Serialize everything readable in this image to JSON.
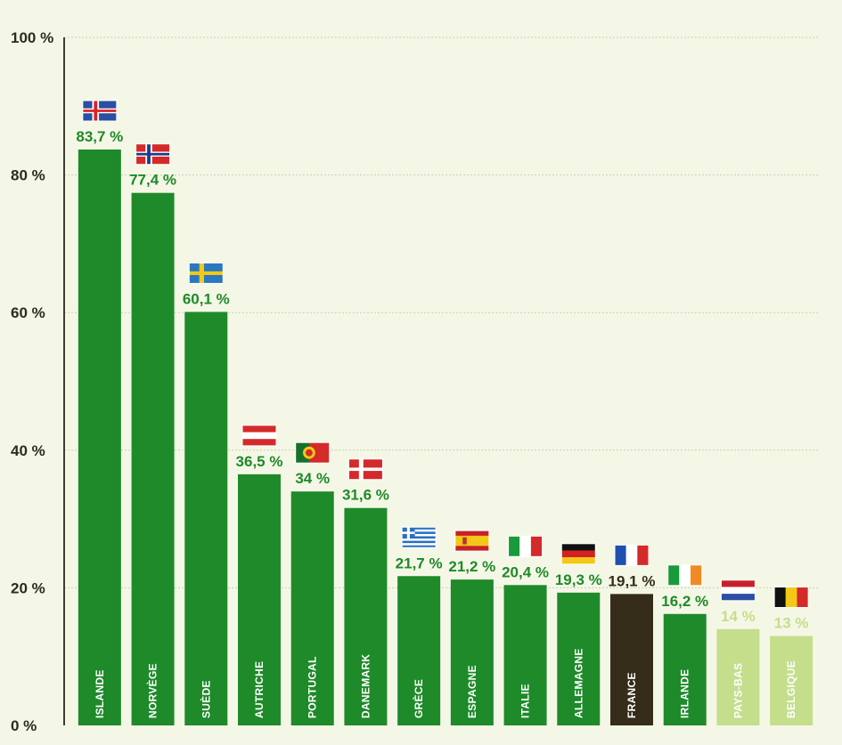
{
  "chart_data": {
    "type": "bar",
    "title": "",
    "xlabel": "",
    "ylabel": "",
    "ylim": [
      0,
      100
    ],
    "y_ticks": [
      "0 %",
      "20 %",
      "40 %",
      "60 %",
      "80 %",
      "100 %"
    ],
    "grid": true,
    "categories": [
      "ISLANDE",
      "NORVÈGE",
      "SUÈDE",
      "AUTRICHE",
      "PORTUGAL",
      "DANEMARK",
      "GRÈCE",
      "ESPAGNE",
      "ITALIE",
      "ALLEMAGNE",
      "FRANCE",
      "IRLANDE",
      "PAYS-BAS",
      "BELGIQUE"
    ],
    "values": [
      83.7,
      77.4,
      60.1,
      36.5,
      34,
      31.6,
      21.7,
      21.2,
      20.4,
      19.3,
      19.1,
      16.2,
      14,
      13
    ],
    "value_labels": [
      "83,7 %",
      "77,4 %",
      "60,1 %",
      "36,5 %",
      "34 %",
      "31,6 %",
      "21,7 %",
      "21,2 %",
      "20,4 %",
      "19,3 %",
      "19,1 %",
      "16,2 %",
      "14 %",
      "13 %"
    ],
    "bar_colors": [
      "#1e8a2a",
      "#1e8a2a",
      "#1e8a2a",
      "#1e8a2a",
      "#1e8a2a",
      "#1e8a2a",
      "#1e8a2a",
      "#1e8a2a",
      "#1e8a2a",
      "#1e8a2a",
      "#352c1a",
      "#1e8a2a",
      "#c4de8c",
      "#c4de8c"
    ],
    "label_colors": [
      "#1e8a2a",
      "#1e8a2a",
      "#1e8a2a",
      "#1e8a2a",
      "#1e8a2a",
      "#1e8a2a",
      "#1e8a2a",
      "#1e8a2a",
      "#1e8a2a",
      "#1e8a2a",
      "#352c1a",
      "#1e8a2a",
      "#c4de8c",
      "#c4de8c"
    ],
    "flags": [
      "iceland-flag",
      "norway-flag",
      "sweden-flag",
      "austria-flag",
      "portugal-flag",
      "denmark-flag",
      "greece-flag",
      "spain-flag",
      "italy-flag",
      "germany-flag",
      "france-flag",
      "ireland-flag",
      "netherlands-flag",
      "belgium-flag"
    ],
    "colors": {
      "background": "#f5f7e6",
      "grid": "#c9cfb4",
      "axis": "#3d3d30"
    }
  }
}
